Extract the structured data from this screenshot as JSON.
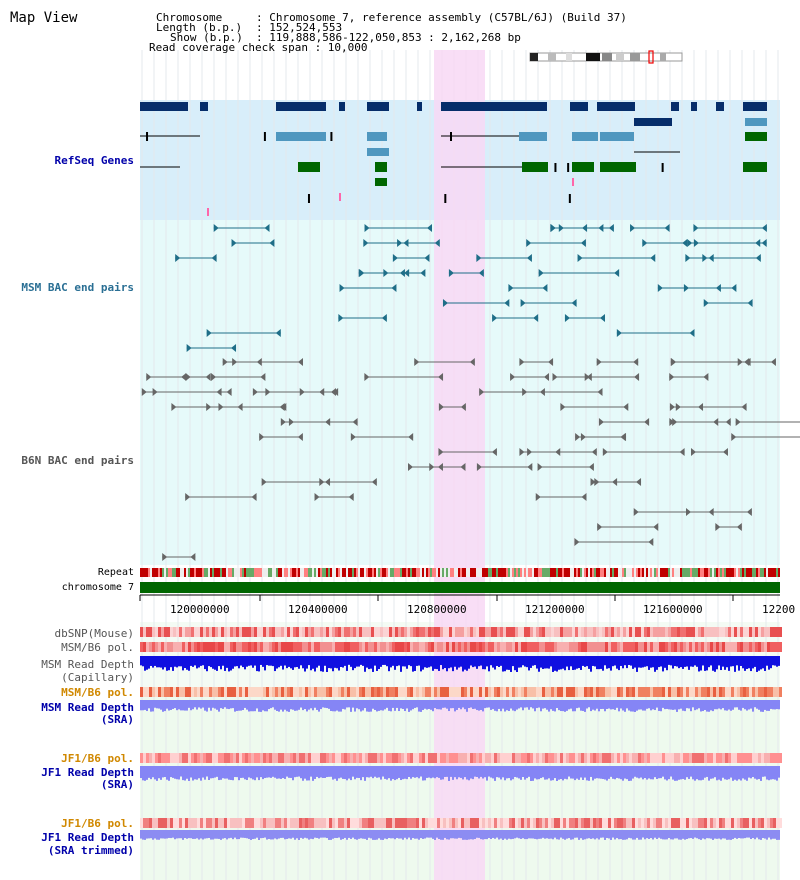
{
  "title": "Map View",
  "header": {
    "chrom_key": "Chromosome",
    "chrom_val": ": Chromosome 7, reference assembly (C57BL/6J) (Build 37)",
    "length_key": "Length (b.p.)",
    "length_val": ": 152,524,553",
    "show_key": "Show (b.p.)",
    "show_val": ": 119,888,586-122,050,853 : 2,162,268 bp",
    "coverage_line": "Read coverage check span : 10,000"
  },
  "tracks": {
    "refseq": "RefSeq Genes",
    "msm_bac": "MSM BAC end pairs",
    "b6n_bac": "B6N BAC end pairs",
    "repeat": "Repeat",
    "chromosome": "chromosome 7",
    "dbsnp": "dbSNP(Mouse)",
    "msm_b6_pol": "MSM/B6 pol.",
    "msm_depth_cap_1": "MSM Read Depth",
    "msm_depth_cap_2": "(Capillary)",
    "msm_b6_pol_sra": "MSM/B6 pol.",
    "msm_depth_sra_1": "MSM Read Depth",
    "msm_depth_sra_2": "(SRA)",
    "jf1_b6_pol": "JF1/B6 pol.",
    "jf1_depth_1": "JF1 Read Depth",
    "jf1_depth_2": "(SRA)",
    "jf1_b6_pol_2": "JF1/B6 pol.",
    "jf1_trim_1": "JF1 Read Depth",
    "jf1_trim_2": "(SRA trimmed)"
  },
  "axis": {
    "ticks": [
      "120000000",
      "120400000",
      "120800000",
      "121200000",
      "121600000",
      "12200"
    ]
  },
  "colors": {
    "highlight": "#f8d8f4",
    "refseq_bg": "#d8eefa",
    "msm_bg": "#e6fafa",
    "gene_navy": "#062d6a",
    "gene_teal": "#4f97bf",
    "gene_green": "#006600",
    "msm_line": "#1f6e88",
    "b6n_line": "#666666",
    "depth_blue": "#1010e0",
    "depth_light": "#8585f5",
    "label_navy": "#0000aa",
    "label_teal": "#2a6f94",
    "label_orange": "#d08800"
  }
}
